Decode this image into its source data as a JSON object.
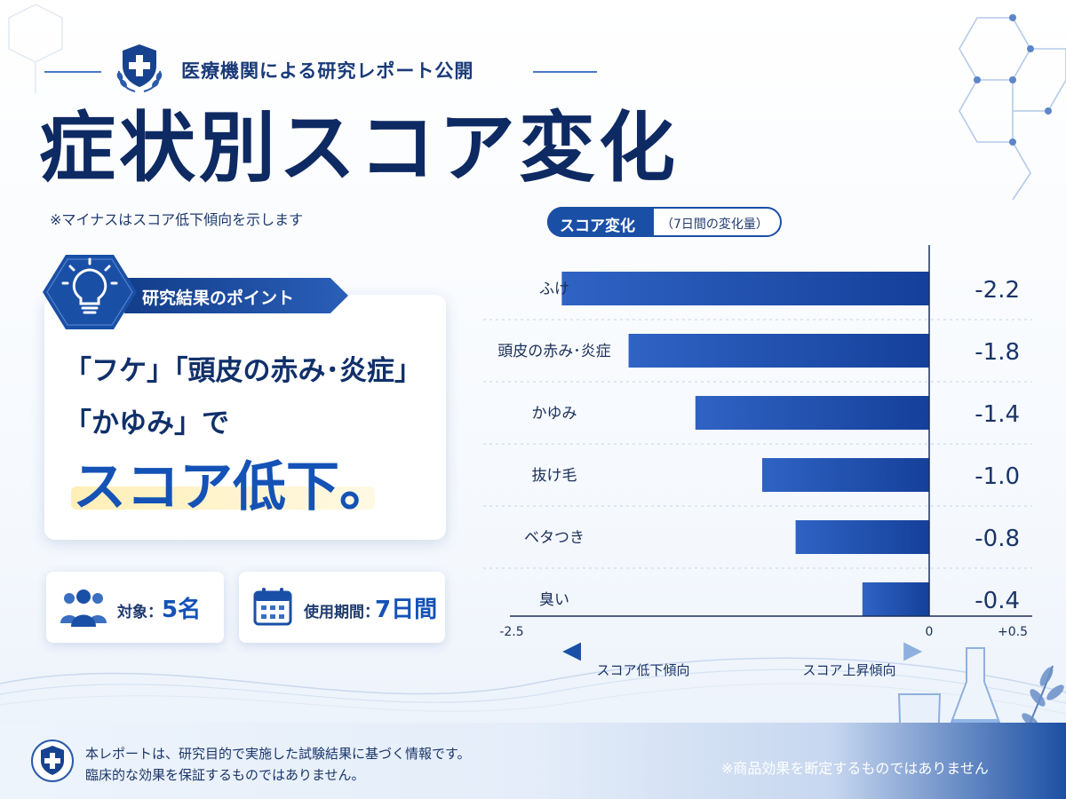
{
  "header": {
    "report_label": "医療機関による研究レポート公開",
    "title": "症状別スコア変化",
    "note": "※マイナスはスコア低下傾向を示します"
  },
  "point_card": {
    "ribbon_label": "研究結果のポイント",
    "line1": "「フケ」「頭皮の赤み･炎症」",
    "line2": "「かゆみ」で",
    "line3": "スコア低下。"
  },
  "stats": {
    "target_label": "対象：",
    "target_value": "5名",
    "period_label": "使用期間：",
    "period_value": "7日間"
  },
  "chart_data": {
    "type": "bar",
    "orientation": "horizontal",
    "title": "スコア変化",
    "subtitle": "（7日間の変化量）",
    "categories": [
      "ふけ",
      "頭皮の赤み･炎症",
      "かゆみ",
      "抜け毛",
      "ベタつき",
      "臭い"
    ],
    "values": [
      -2.2,
      -1.8,
      -1.4,
      -1.0,
      -0.8,
      -0.4
    ],
    "value_labels": [
      "-2.2",
      "-1.8",
      "-1.4",
      "-1.0",
      "-0.8",
      "-0.4"
    ],
    "xlim": [
      -2.5,
      0.5
    ],
    "xticks": [
      {
        "value": -2.5,
        "label": "-2.5"
      },
      {
        "value": 0,
        "label": "0"
      },
      {
        "value": 0.5,
        "label": "+0.5"
      }
    ],
    "direction_left": "スコア低下傾向",
    "direction_right": "スコア上昇傾向",
    "bar_color": "#1a52b0",
    "grid": false
  },
  "footer": {
    "line1": "本レポートは、研究目的で実施した試験結果に基づく情報です。",
    "line2": "臨床的な効果を保証するものではありません。",
    "disclaimer": "※商品効果を断定するものではありません"
  },
  "colors": {
    "navy": "#0e2a63",
    "accent_blue": "#1452b6",
    "highlight": "#ffeca9"
  },
  "icons": {
    "badge": "shield-cross-icon",
    "point": "lightbulb-icon",
    "target": "people-icon",
    "period": "calendar-icon"
  }
}
